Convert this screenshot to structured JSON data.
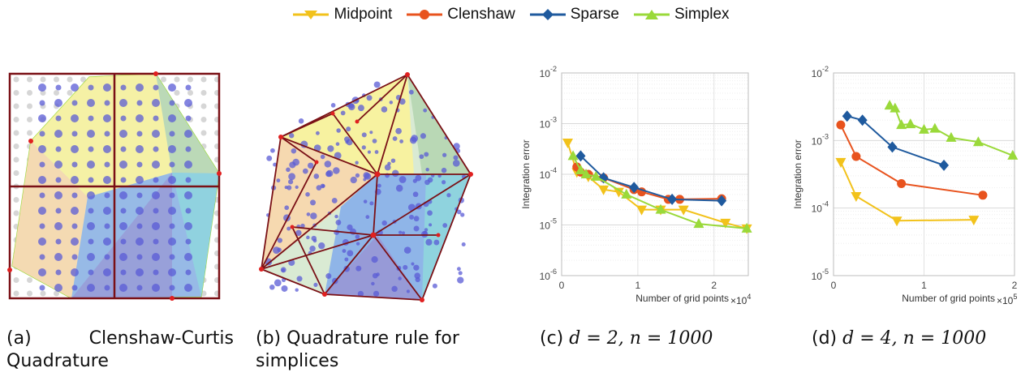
{
  "legend": [
    {
      "name": "Midpoint",
      "color": "#f2c21b",
      "marker": "triangle-down"
    },
    {
      "name": "Clenshaw",
      "color": "#e8531e",
      "marker": "circle"
    },
    {
      "name": "Sparse",
      "color": "#1f5a9e",
      "marker": "diamond"
    },
    {
      "name": "Simplex",
      "color": "#9ad93a",
      "marker": "triangle-up"
    }
  ],
  "captions": {
    "a_prefix": "(a)",
    "a_text": "Clenshaw-Curtis",
    "a_text2": "Quadrature",
    "b_prefix": "(b)",
    "b_text": "Quadrature rule for",
    "b_text2": "simplices",
    "c_prefix": "(c)",
    "c_math": "d = 2, n = 1000",
    "d_prefix": "(d)",
    "d_math": "d = 4, n = 1000"
  },
  "chart_data": [
    {
      "type": "line",
      "id": "c",
      "ylabel": "Integration error",
      "xlabel": "Number of grid points",
      "x_multiplier": "×10",
      "x_multiplier_exp": "4",
      "xlim": [
        0,
        2.45
      ],
      "ylim": [
        1e-06,
        0.01
      ],
      "ylog": true,
      "xticks": [
        "0",
        "1",
        "2"
      ],
      "xtick_values": [
        0,
        1,
        2
      ],
      "yticks": [
        {
          "base": "10",
          "exp": "-6",
          "v": 1e-06
        },
        {
          "base": "10",
          "exp": "-5",
          "v": 1e-05
        },
        {
          "base": "10",
          "exp": "-4",
          "v": 0.0001
        },
        {
          "base": "10",
          "exp": "-3",
          "v": 0.001
        },
        {
          "base": "10",
          "exp": "-2",
          "v": 0.01
        }
      ],
      "grid": true,
      "series": [
        {
          "name": "Midpoint",
          "x": [
            0.08,
            0.2,
            0.35,
            0.55,
            0.75,
            1.05,
            1.3,
            1.6,
            2.15,
            2.43
          ],
          "y": [
            0.00042,
            0.00011,
            9e-05,
            5e-05,
            4.5e-05,
            2e-05,
            2e-05,
            2e-05,
            1.1e-05,
            8.5e-06
          ]
        },
        {
          "name": "Clenshaw",
          "x": [
            0.2,
            0.25,
            0.35,
            0.55,
            0.95,
            1.05,
            1.4,
            1.55,
            2.1
          ],
          "y": [
            0.00014,
            0.00011,
            0.0001,
            8.5e-05,
            5e-05,
            4.5e-05,
            3.2e-05,
            3.2e-05,
            3.3e-05
          ]
        },
        {
          "name": "Sparse",
          "x": [
            0.25,
            0.55,
            0.95,
            1.45,
            2.1
          ],
          "y": [
            0.00023,
            8.5e-05,
            5.5e-05,
            3.2e-05,
            3e-05
          ]
        },
        {
          "name": "Simplex",
          "x": [
            0.15,
            0.25,
            0.32,
            0.45,
            0.85,
            1.3,
            1.8,
            2.43
          ],
          "y": [
            0.00023,
            0.00012,
            0.0001,
            9e-05,
            4e-05,
            2e-05,
            1.05e-05,
            8.5e-06
          ]
        }
      ]
    },
    {
      "type": "line",
      "id": "d",
      "ylabel": "Integration error",
      "xlabel": "Number of grid points",
      "x_multiplier": "×10",
      "x_multiplier_exp": "5",
      "xlim": [
        0,
        2
      ],
      "ylim": [
        1e-05,
        0.01
      ],
      "ylog": true,
      "xticks": [
        "0",
        "1",
        "2"
      ],
      "xtick_values": [
        0,
        1,
        2
      ],
      "yticks": [
        {
          "base": "10",
          "exp": "-5",
          "v": 1e-05
        },
        {
          "base": "10",
          "exp": "-4",
          "v": 0.0001
        },
        {
          "base": "10",
          "exp": "-3",
          "v": 0.001
        },
        {
          "base": "10",
          "exp": "-2",
          "v": 0.01
        }
      ],
      "grid": true,
      "series": [
        {
          "name": "Midpoint",
          "x": [
            0.08,
            0.25,
            0.7,
            1.55
          ],
          "y": [
            0.00048,
            0.00015,
            6.5e-05,
            6.7e-05
          ]
        },
        {
          "name": "Clenshaw",
          "x": [
            0.08,
            0.25,
            0.75,
            1.65
          ],
          "y": [
            0.0017,
            0.00058,
            0.00023,
            0.000155
          ]
        },
        {
          "name": "Sparse",
          "x": [
            0.15,
            0.32,
            0.65,
            1.22
          ],
          "y": [
            0.0023,
            0.002,
            0.0008,
            0.00043
          ]
        },
        {
          "name": "Simplex",
          "x": [
            0.62,
            0.68,
            0.75,
            0.85,
            1.0,
            1.12,
            1.3,
            1.6,
            1.98
          ],
          "y": [
            0.0033,
            0.003,
            0.0017,
            0.00175,
            0.00145,
            0.0015,
            0.0011,
            0.00095,
            0.0006
          ]
        }
      ]
    }
  ]
}
